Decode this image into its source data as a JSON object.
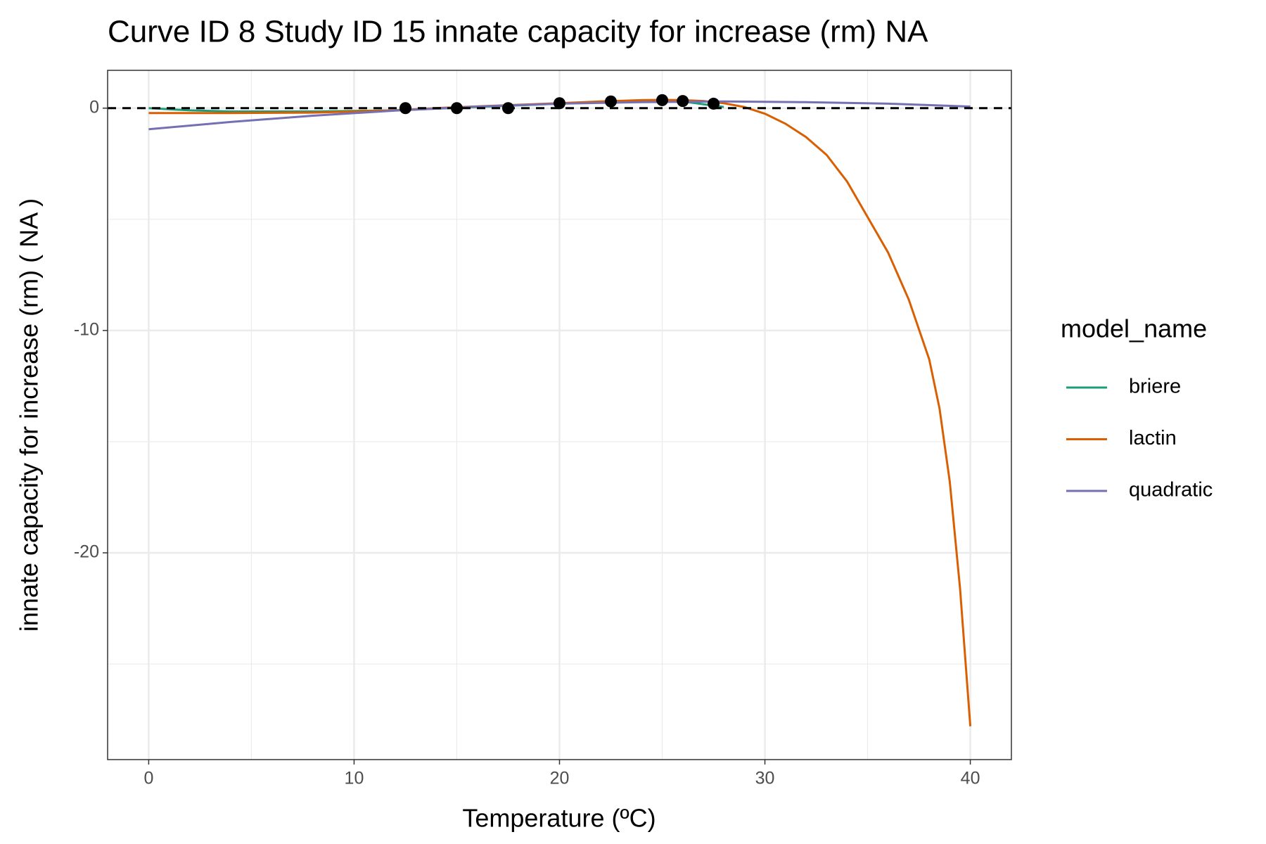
{
  "chart_data": {
    "type": "line",
    "title": "Curve ID 8 Study ID 15 innate capacity for increase (rm) NA",
    "x_label": "Temperature (ºC)",
    "y_label": "innate capacity for increase (rm) ( NA )",
    "legend_title": "model_name",
    "legend_position": "right",
    "xlim": [
      -2,
      42
    ],
    "ylim": [
      -29.3,
      1.7
    ],
    "xticks": [
      0,
      10,
      20,
      30,
      40
    ],
    "yticks": [
      0,
      -10,
      -20
    ],
    "x_minor_ticks": [
      5,
      15,
      25,
      35
    ],
    "y_minor_ticks": [
      -5,
      -15,
      -25
    ],
    "grid": true,
    "reference_line": 0,
    "series": [
      {
        "name": "briere",
        "color": "#1b9e77",
        "x": [
          0,
          2,
          4,
          8,
          12,
          16,
          20,
          24,
          26,
          28
        ],
        "values": [
          0,
          -0.1,
          -0.15,
          -0.15,
          -0.1,
          0.05,
          0.2,
          0.35,
          0.3,
          0.05
        ]
      },
      {
        "name": "lactin",
        "color": "#d95f02",
        "x": [
          0,
          4,
          8,
          12,
          14,
          16,
          18,
          20,
          22,
          24,
          25,
          26,
          27,
          28,
          29,
          30,
          31,
          32,
          33,
          34,
          35,
          36,
          37,
          38,
          38.5,
          39,
          39.5,
          40
        ],
        "values": [
          -0.22,
          -0.22,
          -0.2,
          -0.1,
          0,
          0.08,
          0.15,
          0.22,
          0.3,
          0.36,
          0.37,
          0.36,
          0.32,
          0.22,
          0.05,
          -0.25,
          -0.7,
          -1.3,
          -2.1,
          -3.3,
          -4.9,
          -6.5,
          -8.6,
          -11.3,
          -13.5,
          -16.8,
          -21.6,
          -27.8
        ]
      },
      {
        "name": "quadratic",
        "color": "#7570b3",
        "x": [
          0,
          4,
          8,
          12,
          16,
          20,
          24,
          28,
          32,
          36,
          40
        ],
        "values": [
          -0.95,
          -0.62,
          -0.34,
          -0.11,
          0.07,
          0.2,
          0.27,
          0.3,
          0.27,
          0.2,
          0.07
        ]
      }
    ],
    "points": {
      "color": "#000000",
      "x": [
        12.5,
        15,
        17.5,
        20,
        22.5,
        25,
        26,
        27.5
      ],
      "values": [
        0,
        0,
        0,
        0.22,
        0.3,
        0.36,
        0.32,
        0.2
      ]
    }
  }
}
